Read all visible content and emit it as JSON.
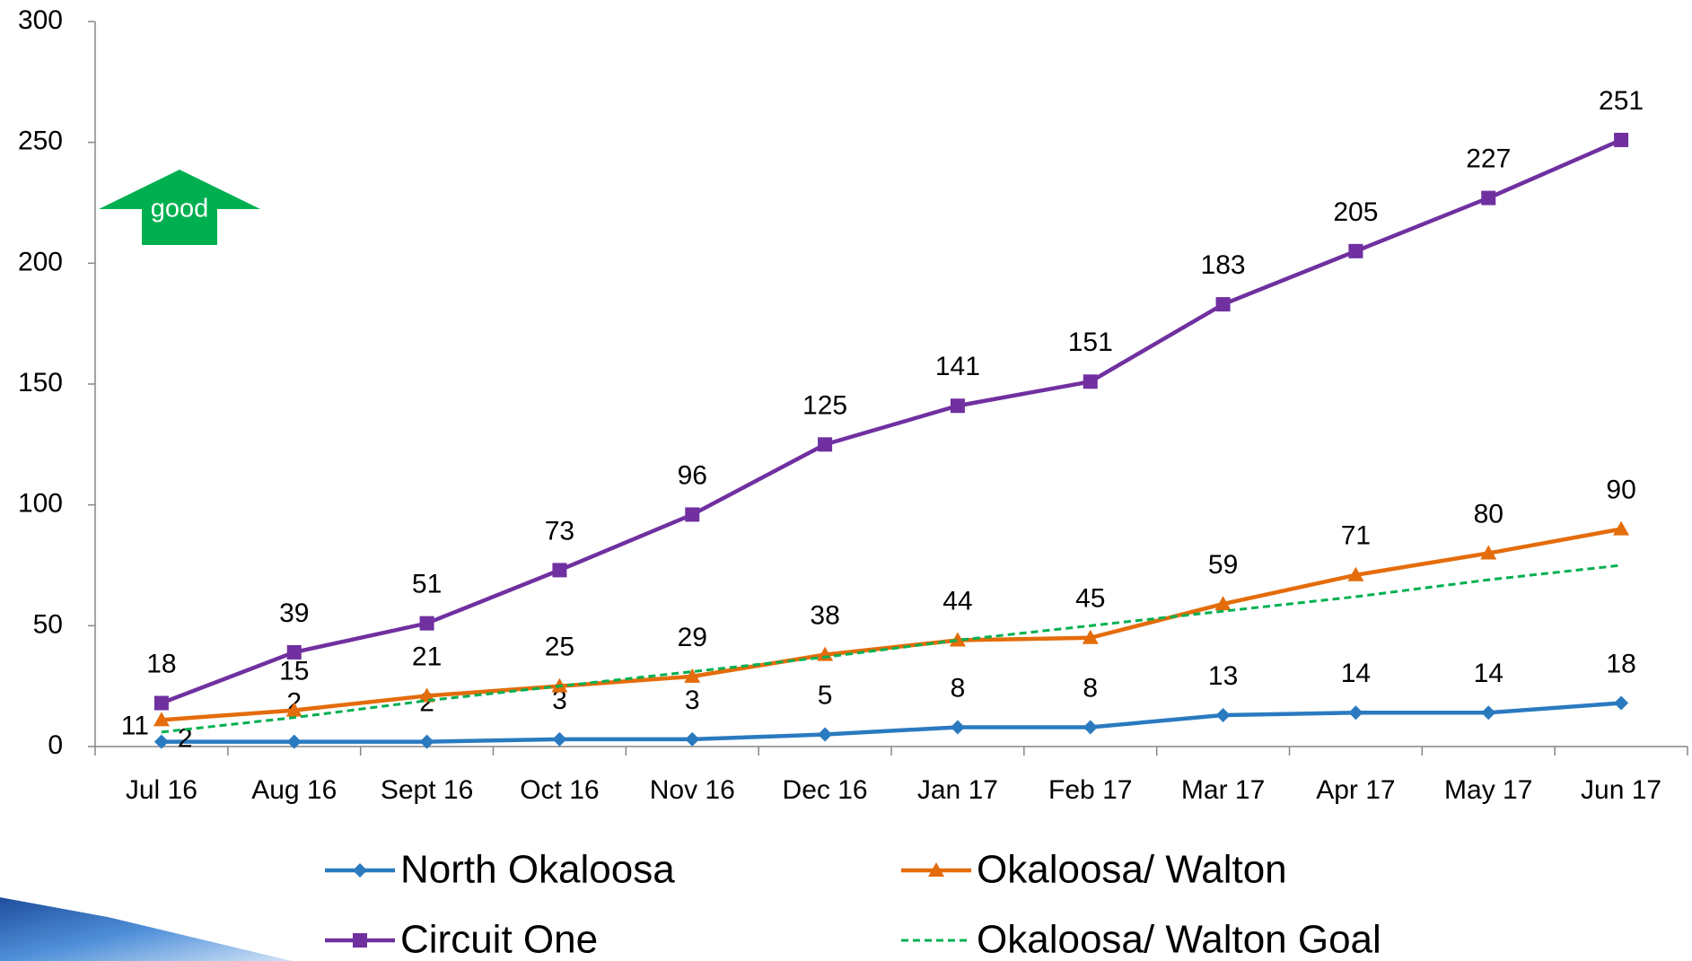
{
  "chart_data": {
    "type": "line",
    "categories": [
      "Jul 16",
      "Aug 16",
      "Sept 16",
      "Oct 16",
      "Nov 16",
      "Dec 16",
      "Jan 17",
      "Feb 17",
      "Mar 17",
      "Apr 17",
      "May 17",
      "Jun 17"
    ],
    "series": [
      {
        "name": "North Okaloosa",
        "color": "#2a7ac0",
        "marker": "diamond",
        "line_style": "solid",
        "data_labels": true,
        "values": [
          2,
          2,
          2,
          3,
          3,
          5,
          8,
          8,
          13,
          14,
          14,
          18
        ]
      },
      {
        "name": "Okaloosa/ Walton",
        "color": "#e46c0a",
        "marker": "triangle",
        "line_style": "solid",
        "data_labels": true,
        "values": [
          11,
          15,
          21,
          25,
          29,
          38,
          44,
          45,
          59,
          71,
          80,
          90
        ]
      },
      {
        "name": "Circuit One",
        "color": "#7030a0",
        "marker": "square",
        "line_style": "solid",
        "data_labels": true,
        "values": [
          18,
          39,
          51,
          73,
          96,
          125,
          141,
          151,
          183,
          205,
          227,
          251
        ]
      },
      {
        "name": "Okaloosa/ Walton Goal",
        "color": "#00b050",
        "marker": "none",
        "line_style": "dashed",
        "data_labels": false,
        "values": [
          6,
          12,
          19,
          25,
          31,
          37,
          44,
          50,
          56,
          62,
          69,
          75
        ]
      }
    ],
    "ylim": [
      0,
      300
    ],
    "yticks": [
      0,
      50,
      100,
      150,
      200,
      250,
      300
    ],
    "grid": false,
    "legend": "bottom",
    "annotation": "good"
  }
}
